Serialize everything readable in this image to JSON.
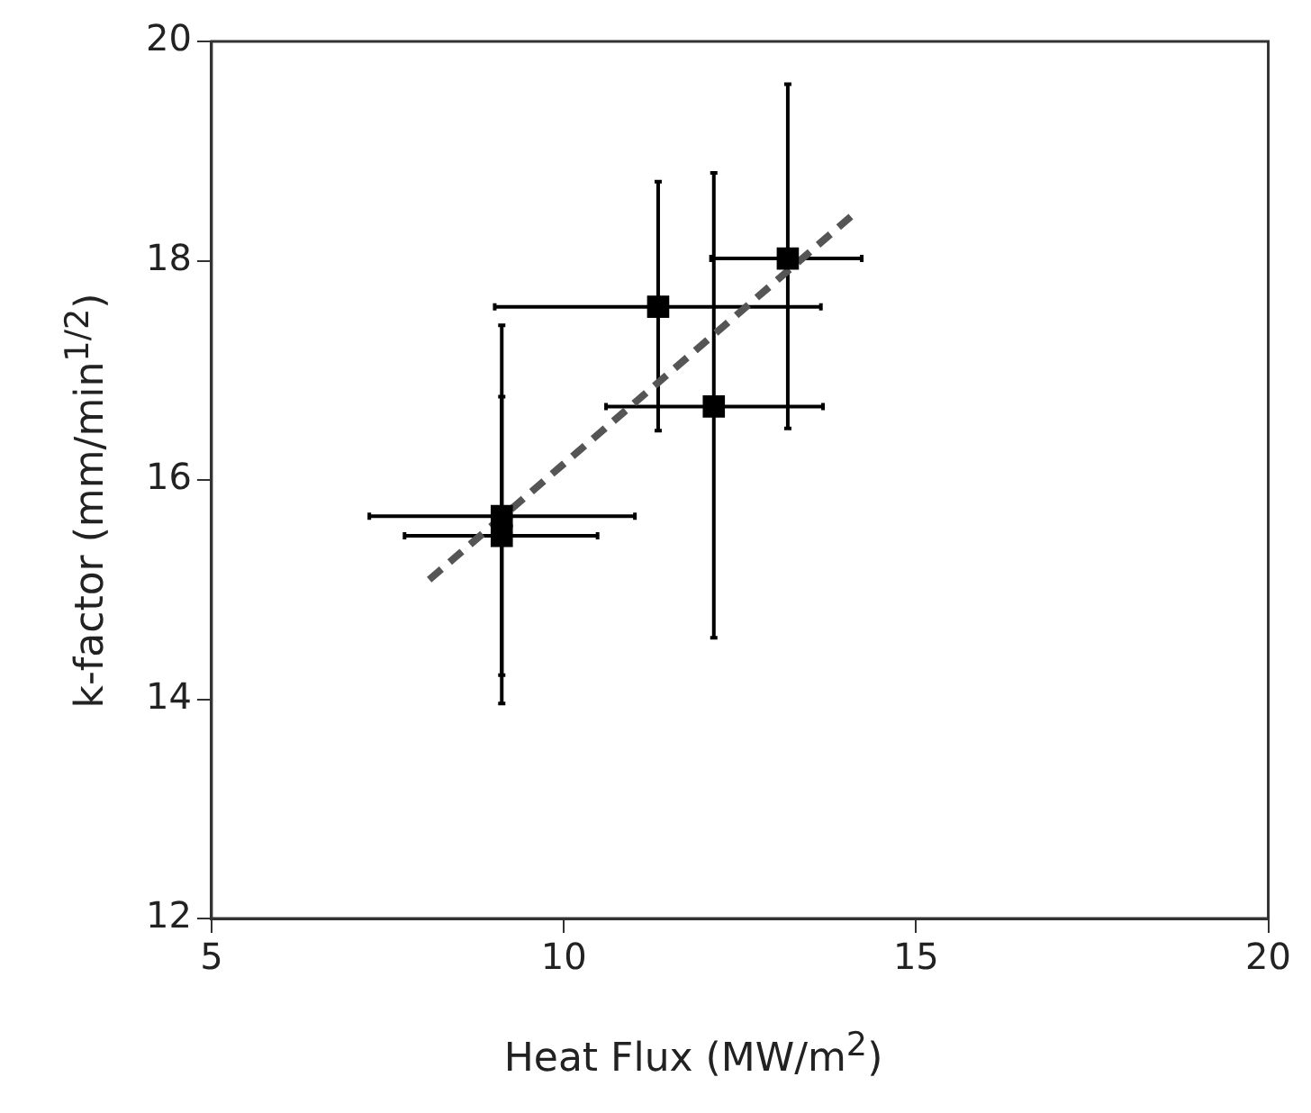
{
  "chart_data": {
    "type": "scatter",
    "xlabel": "Heat Flux (MW/m$^{2}$)",
    "ylabel": "k-factor (mm/min$^{1/2}$)",
    "xlim": [
      5,
      20
    ],
    "xticks": [
      5,
      10,
      15,
      20
    ],
    "ylim": [
      12,
      20
    ],
    "yticks": [
      12,
      14,
      16,
      18,
      20
    ],
    "grid": false,
    "legend": false,
    "marker": "square",
    "series": [
      {
        "color": "#000000",
        "x": [
          9.12,
          9.12,
          11.34,
          12.13,
          13.18
        ],
        "values": [
          15.67,
          15.49,
          17.58,
          16.67,
          18.02
        ],
        "errors": [
          [
            13.96,
            17.41
          ],
          [
            14.22,
            16.76
          ],
          [
            16.45,
            18.72
          ],
          [
            14.56,
            18.8
          ],
          [
            16.47,
            19.61
          ]
        ],
        "xerrors": [
          [
            7.24,
            11.01
          ],
          [
            7.74,
            10.48
          ],
          [
            9.02,
            13.65
          ],
          [
            10.6,
            13.68
          ],
          [
            12.09,
            14.23
          ]
        ]
      },
      {
        "type": "line",
        "color": "#555555",
        "line_style": "dashed",
        "marker": "none",
        "x": [
          8.09,
          14.18
        ],
        "values": [
          15.09,
          18.46
        ]
      }
    ]
  }
}
